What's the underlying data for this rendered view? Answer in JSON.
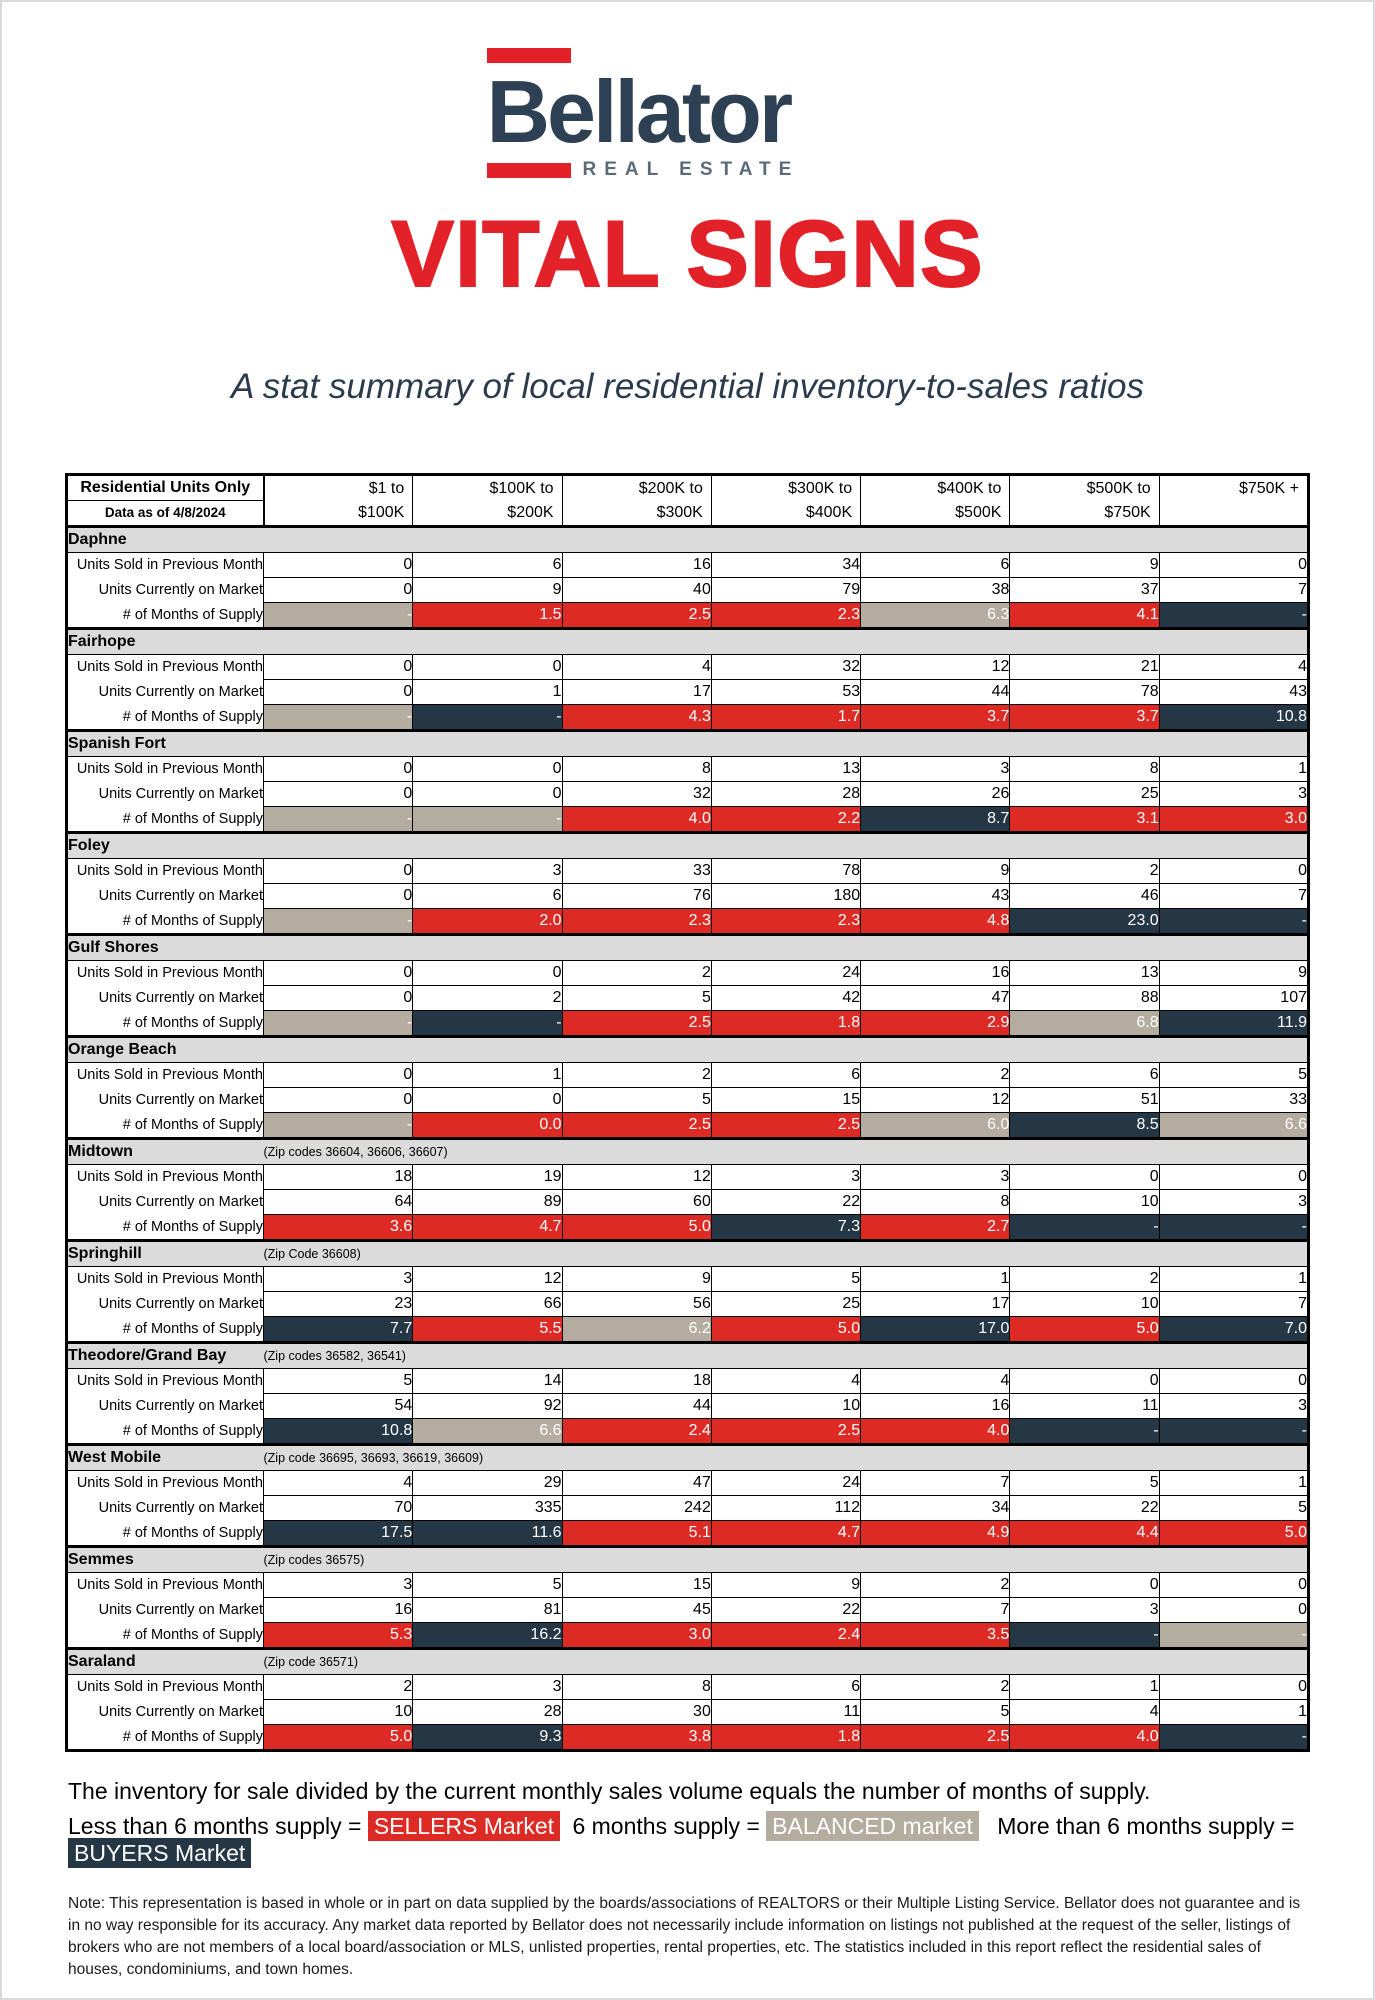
{
  "logo": {
    "name": "Bellator",
    "tagline": "REAL ESTATE"
  },
  "title": "VITAL SIGNS",
  "subtitle": "A stat summary of local residential inventory-to-sales ratios",
  "colors": {
    "accent_red": "#E22128",
    "sellers": "#DD2A25",
    "balanced": "#B4AC9F",
    "buyers": "#253745",
    "logo_navy": "#2E4053",
    "band_gray": "#DBDBDB"
  },
  "table": {
    "corner": {
      "line1": "Residential Units Only",
      "line2": "Data as of 4/8/2024"
    },
    "columns": [
      {
        "line1": "$1 to",
        "line2": "$100K"
      },
      {
        "line1": "$100K to",
        "line2": "$200K"
      },
      {
        "line1": "$200K to",
        "line2": "$300K"
      },
      {
        "line1": "$300K to",
        "line2": "$400K"
      },
      {
        "line1": "$400K to",
        "line2": "$500K"
      },
      {
        "line1": "$500K to",
        "line2": "$750K"
      },
      {
        "line1": "$750K +",
        "line2": ""
      }
    ],
    "row_labels": [
      "Units Sold in Previous Month",
      "Units Currently on Market",
      "# of Months of Supply"
    ],
    "sections": [
      {
        "area": "Daphne",
        "zip_note": "",
        "sold": [
          0,
          6,
          16,
          34,
          6,
          9,
          0
        ],
        "on_market": [
          0,
          9,
          40,
          79,
          38,
          37,
          7
        ],
        "supply": [
          {
            "v": "-",
            "m": "balanced"
          },
          {
            "v": "1.5",
            "m": "sellers"
          },
          {
            "v": "2.5",
            "m": "sellers"
          },
          {
            "v": "2.3",
            "m": "sellers"
          },
          {
            "v": "6.3",
            "m": "balanced"
          },
          {
            "v": "4.1",
            "m": "sellers"
          },
          {
            "v": "-",
            "m": "buyers"
          }
        ]
      },
      {
        "area": "Fairhope",
        "zip_note": "",
        "sold": [
          0,
          0,
          4,
          32,
          12,
          21,
          4
        ],
        "on_market": [
          0,
          1,
          17,
          53,
          44,
          78,
          43
        ],
        "supply": [
          {
            "v": "-",
            "m": "balanced"
          },
          {
            "v": "-",
            "m": "buyers"
          },
          {
            "v": "4.3",
            "m": "sellers"
          },
          {
            "v": "1.7",
            "m": "sellers"
          },
          {
            "v": "3.7",
            "m": "sellers"
          },
          {
            "v": "3.7",
            "m": "sellers"
          },
          {
            "v": "10.8",
            "m": "buyers"
          }
        ]
      },
      {
        "area": "Spanish Fort",
        "zip_note": "",
        "sold": [
          0,
          0,
          8,
          13,
          3,
          8,
          1
        ],
        "on_market": [
          0,
          0,
          32,
          28,
          26,
          25,
          3
        ],
        "supply": [
          {
            "v": "-",
            "m": "balanced"
          },
          {
            "v": "-",
            "m": "balanced"
          },
          {
            "v": "4.0",
            "m": "sellers"
          },
          {
            "v": "2.2",
            "m": "sellers"
          },
          {
            "v": "8.7",
            "m": "buyers"
          },
          {
            "v": "3.1",
            "m": "sellers"
          },
          {
            "v": "3.0",
            "m": "sellers"
          }
        ]
      },
      {
        "area": "Foley",
        "zip_note": "",
        "sold": [
          0,
          3,
          33,
          78,
          9,
          2,
          0
        ],
        "on_market": [
          0,
          6,
          76,
          180,
          43,
          46,
          7
        ],
        "supply": [
          {
            "v": "-",
            "m": "balanced"
          },
          {
            "v": "2.0",
            "m": "sellers"
          },
          {
            "v": "2.3",
            "m": "sellers"
          },
          {
            "v": "2.3",
            "m": "sellers"
          },
          {
            "v": "4.8",
            "m": "sellers"
          },
          {
            "v": "23.0",
            "m": "buyers"
          },
          {
            "v": "-",
            "m": "buyers"
          }
        ]
      },
      {
        "area": "Gulf Shores",
        "zip_note": "",
        "sold": [
          0,
          0,
          2,
          24,
          16,
          13,
          9
        ],
        "on_market": [
          0,
          2,
          5,
          42,
          47,
          88,
          107
        ],
        "supply": [
          {
            "v": "-",
            "m": "balanced"
          },
          {
            "v": "-",
            "m": "buyers"
          },
          {
            "v": "2.5",
            "m": "sellers"
          },
          {
            "v": "1.8",
            "m": "sellers"
          },
          {
            "v": "2.9",
            "m": "sellers"
          },
          {
            "v": "6.8",
            "m": "balanced"
          },
          {
            "v": "11.9",
            "m": "buyers"
          }
        ]
      },
      {
        "area": "Orange Beach",
        "zip_note": "",
        "sold": [
          0,
          1,
          2,
          6,
          2,
          6,
          5
        ],
        "on_market": [
          0,
          0,
          5,
          15,
          12,
          51,
          33
        ],
        "supply": [
          {
            "v": "-",
            "m": "balanced"
          },
          {
            "v": "0.0",
            "m": "sellers"
          },
          {
            "v": "2.5",
            "m": "sellers"
          },
          {
            "v": "2.5",
            "m": "sellers"
          },
          {
            "v": "6.0",
            "m": "balanced"
          },
          {
            "v": "8.5",
            "m": "buyers"
          },
          {
            "v": "6.6",
            "m": "balanced"
          }
        ]
      },
      {
        "area": "Midtown",
        "zip_note": "(Zip codes 36604, 36606, 36607)",
        "sold": [
          18,
          19,
          12,
          3,
          3,
          0,
          0
        ],
        "on_market": [
          64,
          89,
          60,
          22,
          8,
          10,
          3
        ],
        "supply": [
          {
            "v": "3.6",
            "m": "sellers"
          },
          {
            "v": "4.7",
            "m": "sellers"
          },
          {
            "v": "5.0",
            "m": "sellers"
          },
          {
            "v": "7.3",
            "m": "buyers"
          },
          {
            "v": "2.7",
            "m": "sellers"
          },
          {
            "v": "-",
            "m": "buyers"
          },
          {
            "v": "-",
            "m": "buyers"
          }
        ]
      },
      {
        "area": "Springhill",
        "zip_note": "(Zip Code 36608)",
        "sold": [
          3,
          12,
          9,
          5,
          1,
          2,
          1
        ],
        "on_market": [
          23,
          66,
          56,
          25,
          17,
          10,
          7
        ],
        "supply": [
          {
            "v": "7.7",
            "m": "buyers"
          },
          {
            "v": "5.5",
            "m": "sellers"
          },
          {
            "v": "6.2",
            "m": "balanced"
          },
          {
            "v": "5.0",
            "m": "sellers"
          },
          {
            "v": "17.0",
            "m": "buyers"
          },
          {
            "v": "5.0",
            "m": "sellers"
          },
          {
            "v": "7.0",
            "m": "buyers"
          }
        ]
      },
      {
        "area": "Theodore/Grand Bay",
        "zip_note": "(Zip codes 36582, 36541)",
        "sold": [
          5,
          14,
          18,
          4,
          4,
          0,
          0
        ],
        "on_market": [
          54,
          92,
          44,
          10,
          16,
          11,
          3
        ],
        "supply": [
          {
            "v": "10.8",
            "m": "buyers"
          },
          {
            "v": "6.6",
            "m": "balanced"
          },
          {
            "v": "2.4",
            "m": "sellers"
          },
          {
            "v": "2.5",
            "m": "sellers"
          },
          {
            "v": "4.0",
            "m": "sellers"
          },
          {
            "v": "-",
            "m": "buyers"
          },
          {
            "v": "-",
            "m": "buyers"
          }
        ]
      },
      {
        "area": "West Mobile",
        "zip_note": "(Zip code 36695, 36693, 36619, 36609)",
        "sold": [
          4,
          29,
          47,
          24,
          7,
          5,
          1
        ],
        "on_market": [
          70,
          335,
          242,
          112,
          34,
          22,
          5
        ],
        "supply": [
          {
            "v": "17.5",
            "m": "buyers"
          },
          {
            "v": "11.6",
            "m": "buyers"
          },
          {
            "v": "5.1",
            "m": "sellers"
          },
          {
            "v": "4.7",
            "m": "sellers"
          },
          {
            "v": "4.9",
            "m": "sellers"
          },
          {
            "v": "4.4",
            "m": "sellers"
          },
          {
            "v": "5.0",
            "m": "sellers"
          }
        ]
      },
      {
        "area": "Semmes",
        "zip_note": "(Zip codes 36575)",
        "sold": [
          3,
          5,
          15,
          9,
          2,
          0,
          0
        ],
        "on_market": [
          16,
          81,
          45,
          22,
          7,
          3,
          0
        ],
        "supply": [
          {
            "v": "5.3",
            "m": "sellers"
          },
          {
            "v": "16.2",
            "m": "buyers"
          },
          {
            "v": "3.0",
            "m": "sellers"
          },
          {
            "v": "2.4",
            "m": "sellers"
          },
          {
            "v": "3.5",
            "m": "sellers"
          },
          {
            "v": "-",
            "m": "buyers"
          },
          {
            "v": "-",
            "m": "balanced"
          }
        ]
      },
      {
        "area": "Saraland",
        "zip_note": "(Zip code 36571)",
        "sold": [
          2,
          3,
          8,
          6,
          2,
          1,
          0
        ],
        "on_market": [
          10,
          28,
          30,
          11,
          5,
          4,
          1
        ],
        "supply": [
          {
            "v": "5.0",
            "m": "sellers"
          },
          {
            "v": "9.3",
            "m": "buyers"
          },
          {
            "v": "3.8",
            "m": "sellers"
          },
          {
            "v": "1.8",
            "m": "sellers"
          },
          {
            "v": "2.5",
            "m": "sellers"
          },
          {
            "v": "4.0",
            "m": "sellers"
          },
          {
            "v": "-",
            "m": "buyers"
          }
        ]
      }
    ]
  },
  "legend": {
    "line1": "The inventory for sale divided by the current monthly sales volume equals the number of months of supply.",
    "sellers_prefix": "Less than 6 months supply =",
    "sellers_label": "SELLERS Market",
    "balanced_prefix": "6 months supply =",
    "balanced_label": "BALANCED market",
    "buyers_prefix": "More than 6 months supply =",
    "buyers_label": "BUYERS Market"
  },
  "note": "Note: This representation is based in whole or in part on data supplied by the boards/associations of REALTORS or their Multiple Listing Service. Bellator does not guarantee and is in no way responsible for its accuracy. Any market data reported by Bellator does not necessarily include information on listings not published at the request of the seller, listings of brokers who are not members of a local board/association or MLS, unlisted properties, rental properties, etc. The statistics included in this report reflect the residential sales of houses, condominiums, and town homes."
}
